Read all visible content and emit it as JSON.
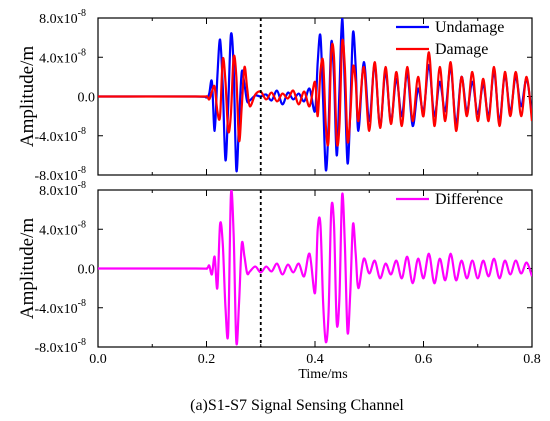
{
  "chart_data": [
    {
      "type": "line",
      "ylabel": "Amplitude/m",
      "xlim": [
        0.0,
        0.8
      ],
      "ylim": [
        -8e-08,
        8e-08
      ],
      "y_ticks": [
        {
          "mant": "8.0x10",
          "exp": "-8"
        },
        {
          "mant": "4.0x10",
          "exp": "-8"
        },
        {
          "mant": "0.0",
          "exp": ""
        },
        {
          "mant": "-4.0x10",
          "exp": "-8"
        },
        {
          "mant": "-8.0x10",
          "exp": "-8"
        }
      ],
      "legend_position": "top-right",
      "vertical_marker_x": 0.3,
      "series": [
        {
          "name": "Undamage",
          "color": "#0000ff",
          "x": [
            0.0,
            0.18,
            0.2,
            0.205,
            0.21,
            0.215,
            0.22,
            0.225,
            0.23,
            0.235,
            0.24,
            0.245,
            0.25,
            0.255,
            0.26,
            0.265,
            0.27,
            0.275,
            0.28,
            0.29,
            0.3,
            0.31,
            0.32,
            0.33,
            0.34,
            0.35,
            0.36,
            0.37,
            0.38,
            0.39,
            0.4,
            0.405,
            0.41,
            0.415,
            0.42,
            0.425,
            0.43,
            0.435,
            0.44,
            0.445,
            0.45,
            0.455,
            0.46,
            0.465,
            0.47,
            0.475,
            0.48,
            0.49,
            0.5,
            0.51,
            0.52,
            0.53,
            0.54,
            0.55,
            0.56,
            0.57,
            0.58,
            0.59,
            0.6,
            0.61,
            0.62,
            0.63,
            0.64,
            0.65,
            0.66,
            0.67,
            0.68,
            0.69,
            0.7,
            0.71,
            0.72,
            0.73,
            0.74,
            0.75,
            0.76,
            0.77,
            0.78,
            0.79,
            0.8
          ],
          "y": [
            0,
            0,
            -1e-09,
            3e-09,
            1.5e-08,
            -3.5e-08,
            2e-08,
            5.8e-08,
            1e-08,
            -6.5e-08,
            -1e-08,
            6.3e-08,
            3e-08,
            -7.5e-08,
            -2.5e-08,
            2.5e-08,
            1.2e-08,
            -5e-09,
            -4e-09,
            1e-09,
            0,
            2e-09,
            -4e-09,
            6e-09,
            -8e-09,
            4e-09,
            -3e-09,
            3e-09,
            -5e-09,
            8e-09,
            -1.5e-08,
            3.5e-08,
            6.2e-08,
            -5e-09,
            -7.5e-08,
            -3e-08,
            5.5e-08,
            2e-08,
            -6e-08,
            5e-09,
            8e-08,
            1e-08,
            -6.8e-08,
            -1.5e-08,
            6.5e-08,
            3e-08,
            -3.5e-08,
            3.5e-08,
            -2.5e-08,
            3.2e-08,
            -3e-08,
            2.5e-08,
            -2.5e-08,
            1.8e-08,
            -2e-08,
            2.4e-08,
            -3e-08,
            8e-09,
            -1.5e-08,
            3.2e-08,
            -2e-08,
            1.5e-08,
            -1.5e-08,
            3e-08,
            -2.8e-08,
            2e-08,
            -1.5e-08,
            1.5e-08,
            -1.8e-08,
            1.2e-08,
            -2e-08,
            2.5e-08,
            -2.5e-08,
            2.2e-08,
            -1.5e-08,
            2e-08,
            -1e-08,
            1.8e-08,
            -2e-08
          ]
        },
        {
          "name": "Damage",
          "color": "#ff0000",
          "x": [
            0.0,
            0.18,
            0.2,
            0.205,
            0.21,
            0.215,
            0.22,
            0.225,
            0.23,
            0.235,
            0.24,
            0.245,
            0.25,
            0.255,
            0.26,
            0.265,
            0.27,
            0.275,
            0.28,
            0.29,
            0.3,
            0.31,
            0.32,
            0.33,
            0.34,
            0.35,
            0.36,
            0.37,
            0.38,
            0.39,
            0.4,
            0.405,
            0.41,
            0.415,
            0.42,
            0.425,
            0.43,
            0.435,
            0.44,
            0.445,
            0.45,
            0.455,
            0.46,
            0.465,
            0.47,
            0.475,
            0.48,
            0.49,
            0.5,
            0.51,
            0.52,
            0.53,
            0.54,
            0.55,
            0.56,
            0.57,
            0.58,
            0.59,
            0.6,
            0.61,
            0.62,
            0.63,
            0.64,
            0.65,
            0.66,
            0.67,
            0.68,
            0.69,
            0.7,
            0.71,
            0.72,
            0.73,
            0.74,
            0.75,
            0.76,
            0.77,
            0.78,
            0.79,
            0.8
          ],
          "y": [
            0,
            0,
            0,
            -3e-09,
            5e-09,
            1e-08,
            -1.5e-08,
            -2e-08,
            3.8e-08,
            1.5e-08,
            -3.5e-08,
            -1.8e-08,
            4e-08,
            2e-08,
            -4.5e-08,
            -1e-08,
            3e-08,
            8e-09,
            -1e-08,
            2e-09,
            5e-09,
            -3e-09,
            4e-09,
            -5e-09,
            3e-09,
            -2e-09,
            6e-09,
            -8e-09,
            5e-09,
            -1e-08,
            1.5e-08,
            -2e-08,
            2.5e-08,
            3.5e-08,
            -3e-08,
            -4.5e-08,
            4.5e-08,
            4e-08,
            -4.5e-08,
            -3e-08,
            5.5e-08,
            3e-08,
            -4.5e-08,
            -2e-08,
            3e-08,
            1.5e-08,
            -2.5e-08,
            3e-08,
            -3.5e-08,
            3.5e-08,
            -3.2e-08,
            3e-08,
            -2.8e-08,
            2.5e-08,
            -3e-08,
            3e-08,
            -2.5e-08,
            2e-08,
            -2e-08,
            4.5e-08,
            -3e-08,
            3e-08,
            -2.5e-08,
            3.5e-08,
            -3.5e-08,
            2e-08,
            -2e-08,
            2.5e-08,
            -2.5e-08,
            1.8e-08,
            -2.5e-08,
            3e-08,
            -3e-08,
            2.5e-08,
            -2e-08,
            2.5e-08,
            -2e-08,
            2e-08,
            -2.5e-08
          ]
        }
      ]
    },
    {
      "type": "line",
      "xlabel": "Time/ms",
      "ylabel": "Amplitude/m",
      "xlim": [
        0.0,
        0.8
      ],
      "ylim": [
        -8e-08,
        8e-08
      ],
      "x_ticks": [
        "0.0",
        "0.2",
        "0.4",
        "0.6",
        "0.8"
      ],
      "y_ticks": [
        {
          "mant": "8.0x10",
          "exp": "-8"
        },
        {
          "mant": "4.0x10",
          "exp": "-8"
        },
        {
          "mant": "0.0",
          "exp": ""
        },
        {
          "mant": "-4.0x10",
          "exp": "-8"
        },
        {
          "mant": "-8.0x10",
          "exp": "-8"
        }
      ],
      "legend_position": "top-right",
      "vertical_marker_x": 0.3,
      "series": [
        {
          "name": "Difference",
          "color": "#ff00ff",
          "x": [
            0.0,
            0.18,
            0.2,
            0.205,
            0.21,
            0.215,
            0.22,
            0.225,
            0.23,
            0.235,
            0.24,
            0.245,
            0.25,
            0.255,
            0.26,
            0.265,
            0.27,
            0.275,
            0.28,
            0.29,
            0.3,
            0.31,
            0.32,
            0.33,
            0.34,
            0.35,
            0.36,
            0.37,
            0.38,
            0.39,
            0.4,
            0.405,
            0.41,
            0.415,
            0.42,
            0.425,
            0.43,
            0.435,
            0.44,
            0.445,
            0.45,
            0.455,
            0.46,
            0.465,
            0.47,
            0.475,
            0.48,
            0.49,
            0.5,
            0.51,
            0.52,
            0.53,
            0.54,
            0.55,
            0.56,
            0.57,
            0.58,
            0.59,
            0.6,
            0.61,
            0.62,
            0.63,
            0.64,
            0.65,
            0.66,
            0.67,
            0.68,
            0.69,
            0.7,
            0.71,
            0.72,
            0.73,
            0.74,
            0.75,
            0.76,
            0.77,
            0.78,
            0.79,
            0.8
          ],
          "y": [
            0,
            0,
            0,
            3e-09,
            -6e-09,
            1.2e-08,
            -2e-08,
            4.5e-08,
            2.5e-08,
            -4e-08,
            -6.5e-08,
            7.5e-08,
            3.5e-08,
            -7.5e-08,
            -3.5e-08,
            2.5e-08,
            1.2e-08,
            -5e-09,
            -3e-09,
            2e-09,
            -4e-09,
            2e-09,
            -3e-09,
            5e-09,
            -6e-09,
            4e-09,
            -4e-09,
            5e-09,
            -8e-09,
            1.5e-08,
            -2.5e-08,
            4e-08,
            4.5e-08,
            -3.5e-08,
            -7.5e-08,
            -4.5e-08,
            6e-08,
            4.5e-08,
            -5.5e-08,
            -3e-08,
            7.5e-08,
            2.5e-08,
            -6.5e-08,
            -2.5e-08,
            4.5e-08,
            1.5e-08,
            -2e-08,
            1e-08,
            -5e-09,
            8e-09,
            -1e-08,
            5e-09,
            -6e-09,
            8e-09,
            -1e-08,
            1.2e-08,
            -1.5e-08,
            1e-08,
            -1e-08,
            1.5e-08,
            -1.5e-08,
            1e-08,
            -1.2e-08,
            1.5e-08,
            -1.2e-08,
            8e-09,
            -1e-08,
            8e-09,
            -1e-08,
            8e-09,
            -8e-09,
            1e-08,
            -1e-08,
            8e-09,
            -6e-09,
            8e-09,
            -5e-09,
            6e-09,
            -8e-09
          ]
        }
      ]
    }
  ],
  "caption": "(a)S1-S7 Signal Sensing Channel"
}
